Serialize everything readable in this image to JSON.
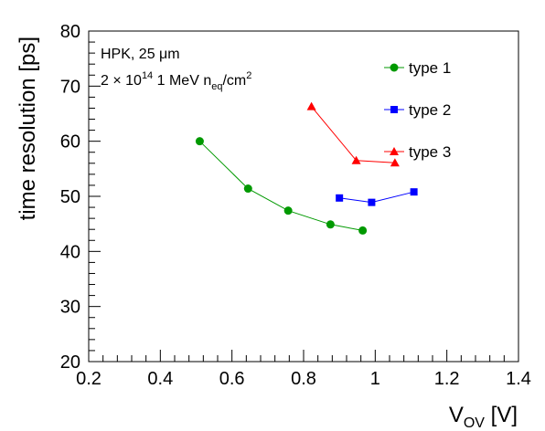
{
  "chart_data": {
    "type": "line",
    "xlabel": {
      "main": "V",
      "sub": "OV",
      "unit": " [V]"
    },
    "ylabel": "time resolution [ps]",
    "xlim": [
      0.2,
      1.4
    ],
    "ylim": [
      20,
      80
    ],
    "x_ticks": [
      "0.2",
      "0.4",
      "0.6",
      "0.8",
      "1",
      "1.2",
      "1.4"
    ],
    "y_ticks": [
      "20",
      "30",
      "40",
      "50",
      "60",
      "70",
      "80"
    ],
    "grid": false,
    "legend_position": "top-right",
    "annotations": {
      "line1": "HPK, 25 μm",
      "line2_prefix": "2 × 10",
      "line2_exp": "14",
      "line2_mid": " 1 MeV n",
      "line2_sub": "eq",
      "line2_unit": "/cm",
      "line2_unit_exp": "2"
    },
    "series": [
      {
        "name": "type 1",
        "color": "#009900",
        "marker": "circle",
        "x": [
          0.51,
          0.645,
          0.757,
          0.875,
          0.965
        ],
        "y": [
          60.0,
          51.4,
          47.4,
          44.9,
          43.8
        ]
      },
      {
        "name": "type 2",
        "color": "#0000ff",
        "marker": "square",
        "x": [
          0.9,
          0.99,
          1.108
        ],
        "y": [
          49.7,
          48.9,
          50.8
        ]
      },
      {
        "name": "type 3",
        "color": "#ff0000",
        "marker": "triangle",
        "x": [
          0.822,
          0.947,
          1.055
        ],
        "y": [
          66.3,
          56.5,
          56.1
        ]
      }
    ]
  }
}
